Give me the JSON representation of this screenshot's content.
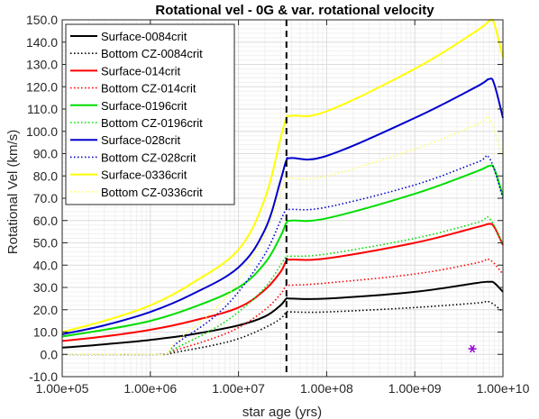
{
  "chart_data": {
    "type": "line",
    "title": "Rotational vel - 0G & var. rotational velocity",
    "xlabel": "star age (yrs)",
    "ylabel": "Rotational Vel (km/s)",
    "xscale": "log",
    "xlim": [
      100000,
      10000000000
    ],
    "ylim": [
      -10,
      150
    ],
    "x_ticks": [
      100000,
      1000000,
      10000000,
      100000000,
      1000000000,
      10000000000
    ],
    "x_tick_labels": [
      "1.00e+05",
      "1.00e+06",
      "1.00e+07",
      "1.00e+08",
      "1.00e+09",
      "1.00e+10"
    ],
    "y_ticks": [
      -10,
      0,
      10,
      20,
      30,
      40,
      50,
      60,
      70,
      80,
      90,
      100,
      110,
      120,
      130,
      140,
      150
    ],
    "y_tick_labels": [
      "-10.0",
      "0.0",
      "10.0",
      "20.0",
      "30.0",
      "40.0",
      "50.0",
      "60.0",
      "70.0",
      "80.0",
      "90.0",
      "100.0",
      "110.0",
      "120.0",
      "130.0",
      "140.0",
      "150.0"
    ],
    "grid": true,
    "legend_position": "top-left",
    "vline": {
      "x": 35000000,
      "color": "#000000",
      "style": "dashed"
    },
    "marker": {
      "x": 4500000000,
      "y": 2.5,
      "symbol": "asterisk",
      "color": "#9400d3"
    },
    "series": [
      {
        "name": "Surface-0084crit",
        "color": "#000000",
        "style": "solid",
        "x": [
          100000,
          300000,
          1000000,
          3000000,
          10000000,
          20000000,
          30000000,
          35000000,
          40000000,
          100000000,
          1000000000,
          5000000000,
          7000000000,
          8000000000,
          10000000000
        ],
        "y": [
          3,
          4.5,
          6.5,
          9,
          13,
          17,
          22,
          25,
          25,
          25,
          28,
          32,
          32.5,
          32,
          28
        ]
      },
      {
        "name": "Bottom CZ-0084crit",
        "color": "#000000",
        "style": "dotted",
        "x": [
          100000,
          1000000,
          1500000,
          2000000,
          5000000,
          10000000,
          20000000,
          30000000,
          35000000,
          40000000,
          100000000,
          1000000000,
          5000000000,
          7000000000,
          10000000000
        ],
        "y": [
          0,
          0,
          0,
          1,
          4,
          7,
          12,
          16,
          19,
          19,
          19,
          21,
          23,
          23.5,
          19
        ]
      },
      {
        "name": "Surface-014crit",
        "color": "#ff0000",
        "style": "solid",
        "x": [
          100000,
          300000,
          1000000,
          3000000,
          10000000,
          20000000,
          30000000,
          35000000,
          40000000,
          100000000,
          1000000000,
          5000000000,
          7000000000,
          8000000000,
          10000000000
        ],
        "y": [
          6,
          8,
          11,
          15,
          21,
          29,
          37,
          42,
          42.5,
          43,
          50,
          57,
          58.5,
          57,
          49
        ]
      },
      {
        "name": "Bottom CZ-014crit",
        "color": "#ff0000",
        "style": "dotted",
        "x": [
          100000,
          1000000,
          1500000,
          2000000,
          5000000,
          10000000,
          20000000,
          30000000,
          35000000,
          40000000,
          100000000,
          1000000000,
          5000000000,
          7000000000,
          10000000000
        ],
        "y": [
          0,
          0,
          0,
          2,
          7,
          12,
          20,
          27,
          31,
          31,
          32,
          36,
          41,
          42.5,
          36
        ]
      },
      {
        "name": "Surface-0196crit",
        "color": "#00dd00",
        "style": "solid",
        "x": [
          100000,
          300000,
          1000000,
          3000000,
          10000000,
          20000000,
          30000000,
          35000000,
          40000000,
          100000000,
          1000000000,
          5000000000,
          7000000000,
          8000000000,
          10000000000
        ],
        "y": [
          8,
          11,
          15,
          21,
          30,
          41,
          53,
          59,
          60,
          61,
          72,
          82,
          84.5,
          83,
          71
        ]
      },
      {
        "name": "Bottom CZ-0196crit",
        "color": "#00dd00",
        "style": "dotted",
        "x": [
          100000,
          1000000,
          1500000,
          2000000,
          5000000,
          10000000,
          20000000,
          30000000,
          35000000,
          40000000,
          100000000,
          1000000000,
          5000000000,
          7000000000,
          10000000000
        ],
        "y": [
          0,
          0,
          0,
          3,
          11,
          19,
          30,
          40,
          44,
          44,
          45,
          52,
          59,
          61,
          49
        ]
      },
      {
        "name": "Surface-028crit",
        "color": "#0000cc",
        "style": "solid",
        "x": [
          100000,
          300000,
          1000000,
          3000000,
          10000000,
          20000000,
          30000000,
          35000000,
          40000000,
          100000000,
          1000000000,
          5000000000,
          7000000000,
          8000000000,
          10000000000
        ],
        "y": [
          9,
          13,
          19,
          27,
          39,
          56,
          78,
          87,
          88,
          89,
          106,
          120,
          123.5,
          121,
          106
        ]
      },
      {
        "name": "Bottom CZ-028crit",
        "color": "#0000cc",
        "style": "dotted",
        "x": [
          100000,
          1000000,
          1500000,
          2000000,
          5000000,
          10000000,
          20000000,
          30000000,
          35000000,
          40000000,
          100000000,
          1000000000,
          5000000000,
          7000000000,
          10000000000
        ],
        "y": [
          0,
          0,
          0,
          5,
          16,
          28,
          45,
          60,
          65,
          65,
          66,
          76,
          86,
          88,
          70
        ]
      },
      {
        "name": "Surface-0336crit",
        "color": "#ffff00",
        "style": "solid",
        "x": [
          100000,
          300000,
          1000000,
          3000000,
          10000000,
          20000000,
          30000000,
          35000000,
          40000000,
          100000000,
          1000000000,
          5000000000,
          7000000000,
          8000000000,
          10000000000
        ],
        "y": [
          10,
          15,
          22,
          32,
          47,
          70,
          97,
          106,
          107,
          109,
          128,
          145,
          149.5,
          148,
          133
        ]
      },
      {
        "name": "Bottom CZ-0336crit",
        "color": "#ffff66",
        "style": "dotted",
        "x": [
          100000,
          1000000,
          1500000,
          2000000,
          5000000,
          10000000,
          20000000,
          30000000,
          35000000,
          40000000,
          100000000,
          1000000000,
          5000000000,
          7000000000,
          10000000000
        ],
        "y": [
          0,
          0,
          0,
          6,
          19,
          33,
          54,
          72,
          79,
          79,
          80,
          92,
          103,
          105.5,
          88
        ]
      }
    ]
  }
}
